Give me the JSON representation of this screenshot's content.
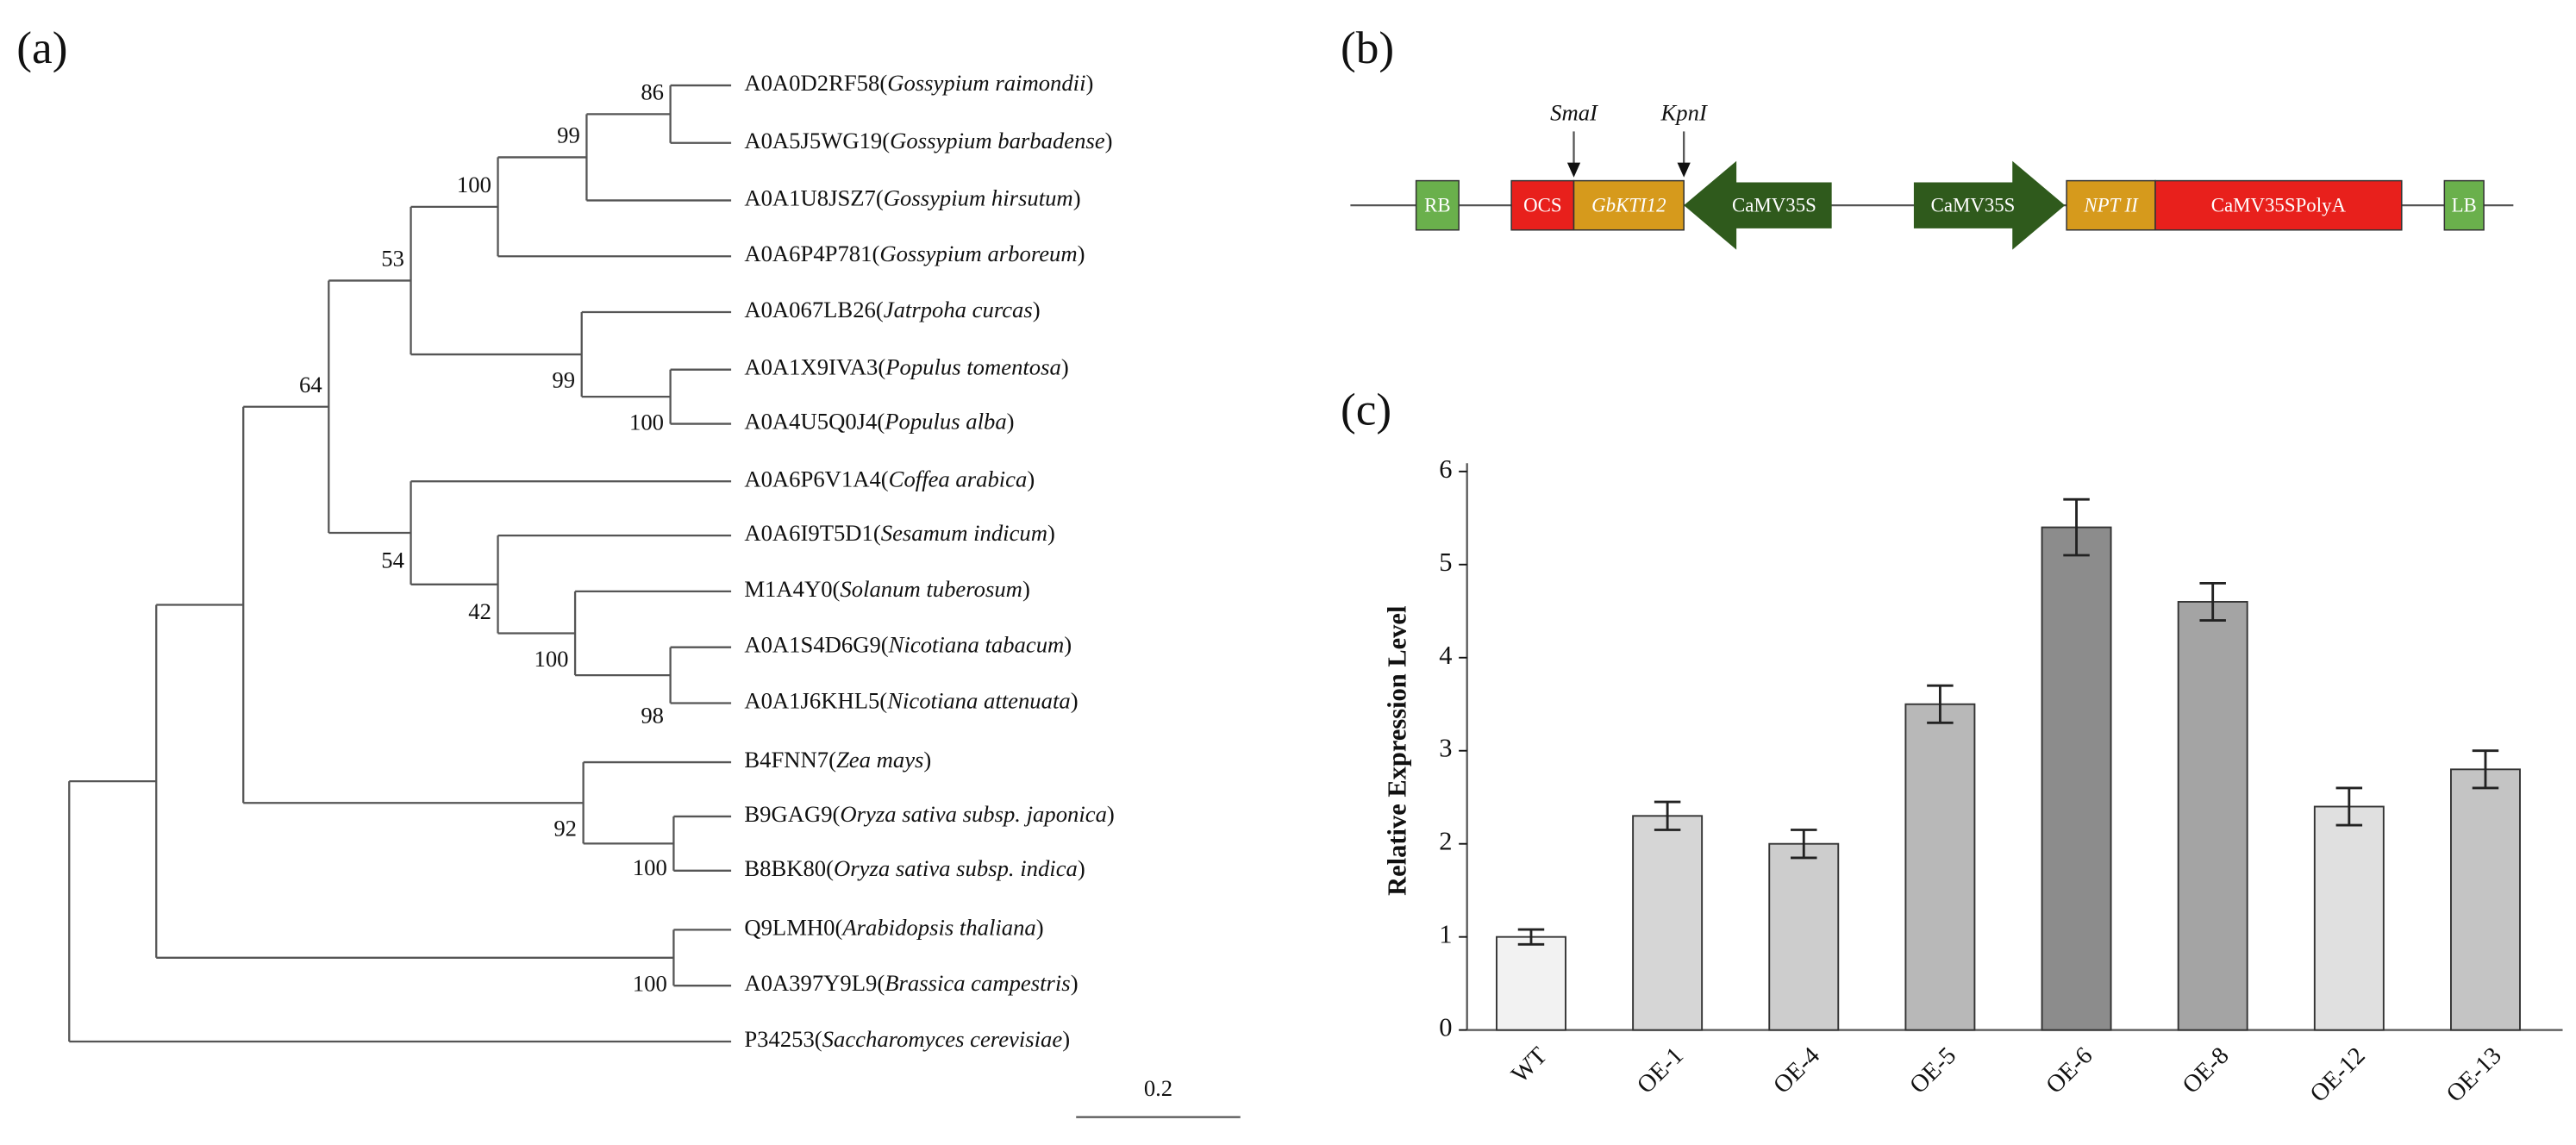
{
  "panels": {
    "a": "(a)",
    "b": "(b)",
    "c": "(c)"
  },
  "tree": {
    "leaves": [
      "A0A0D2RF58(Gossypium raimondii)",
      "A0A5J5WG19(Gossypium barbadense)",
      "A0A1U8JSZ7(Gossypium hirsutum)",
      "A0A6P4P781(Gossypium arboreum)",
      "A0A067LB26(Jatrpoha curcas)",
      "A0A1X9IVA3(Populus tomentosa)",
      "A0A4U5Q0J4(Populus alba)",
      "A0A6P6V1A4(Coffea arabica)",
      "A0A6I9T5D1(Sesamum indicum)",
      "M1A4Y0(Solanum tuberosum)",
      "A0A1S4D6G9(Nicotiana tabacum)",
      "A0A1J6KHL5(Nicotiana attenuata)",
      "B4FNN7(Zea mays)",
      "B9GAG9(Oryza sativa subsp. japonica)",
      "B8BK80(Oryza sativa subsp. indica)",
      "Q9LMH0(Arabidopsis thaliana)",
      "A0A397Y9L9(Brassica campestris)",
      "P34253(Saccharomyces cerevisiae)"
    ],
    "bootstrap": [
      86,
      99,
      100,
      53,
      64,
      99,
      100,
      54,
      42,
      100,
      98,
      92,
      100,
      100
    ],
    "scale_bar": "0.2"
  },
  "construct": {
    "elements": [
      "RB",
      "OCS",
      "GbKTI12",
      "CaMV35S",
      "CaMV35S",
      "NPT II",
      "CaMV35SPolyA",
      "LB"
    ],
    "sites": [
      "SmaI",
      "KpnI"
    ]
  },
  "chart_data": {
    "type": "bar",
    "y_label": "Relative Expression Level",
    "categories": [
      "WT",
      "OE-1",
      "OE-4",
      "OE-5",
      "OE-6",
      "OE-8",
      "OE-12",
      "OE-13"
    ],
    "values": [
      1.0,
      2.3,
      2.0,
      3.5,
      5.4,
      4.6,
      2.4,
      2.8
    ],
    "errors": [
      0.08,
      0.15,
      0.15,
      0.2,
      0.3,
      0.2,
      0.2,
      0.2
    ],
    "colors": [
      "#f2f2f2",
      "#d6d6d6",
      "#cdcdcd",
      "#b8b8b8",
      "#8c8c8c",
      "#a4a4a4",
      "#e0e0e0",
      "#c4c4c4"
    ],
    "ylim": [
      0,
      6
    ],
    "yticks": [
      0,
      1,
      2,
      3,
      4,
      5,
      6
    ]
  }
}
